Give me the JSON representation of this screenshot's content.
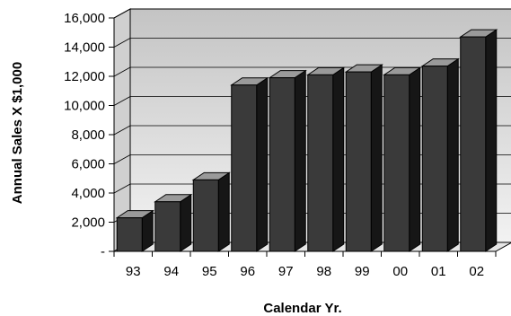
{
  "chart_data": {
    "type": "bar",
    "title": "",
    "xlabel": "Calendar Yr.",
    "ylabel": "Annual Sales X $1,000",
    "categories": [
      "93",
      "94",
      "95",
      "96",
      "97",
      "98",
      "99",
      "00",
      "01",
      "02"
    ],
    "values": [
      2300,
      3400,
      4900,
      11400,
      11900,
      12100,
      12300,
      12100,
      12700,
      14700
    ],
    "ylim": [
      0,
      16000
    ],
    "yticks": [
      0,
      2000,
      4000,
      6000,
      8000,
      10000,
      12000,
      14000,
      16000
    ],
    "ytick_labels": [
      "-",
      "2,000",
      "4,000",
      "6,000",
      "8,000",
      "10,000",
      "12,000",
      "14,000",
      "16,000"
    ],
    "grid": true,
    "legend": "none",
    "style": "3d-column",
    "colors": {
      "bar_front": "#3a3a3a",
      "bar_top": "#9a9a9a",
      "bar_side": "#161616",
      "wall_top": "#c4c4c4",
      "wall_bottom": "#f2f2f2",
      "floor": "#e6e6e6"
    }
  }
}
